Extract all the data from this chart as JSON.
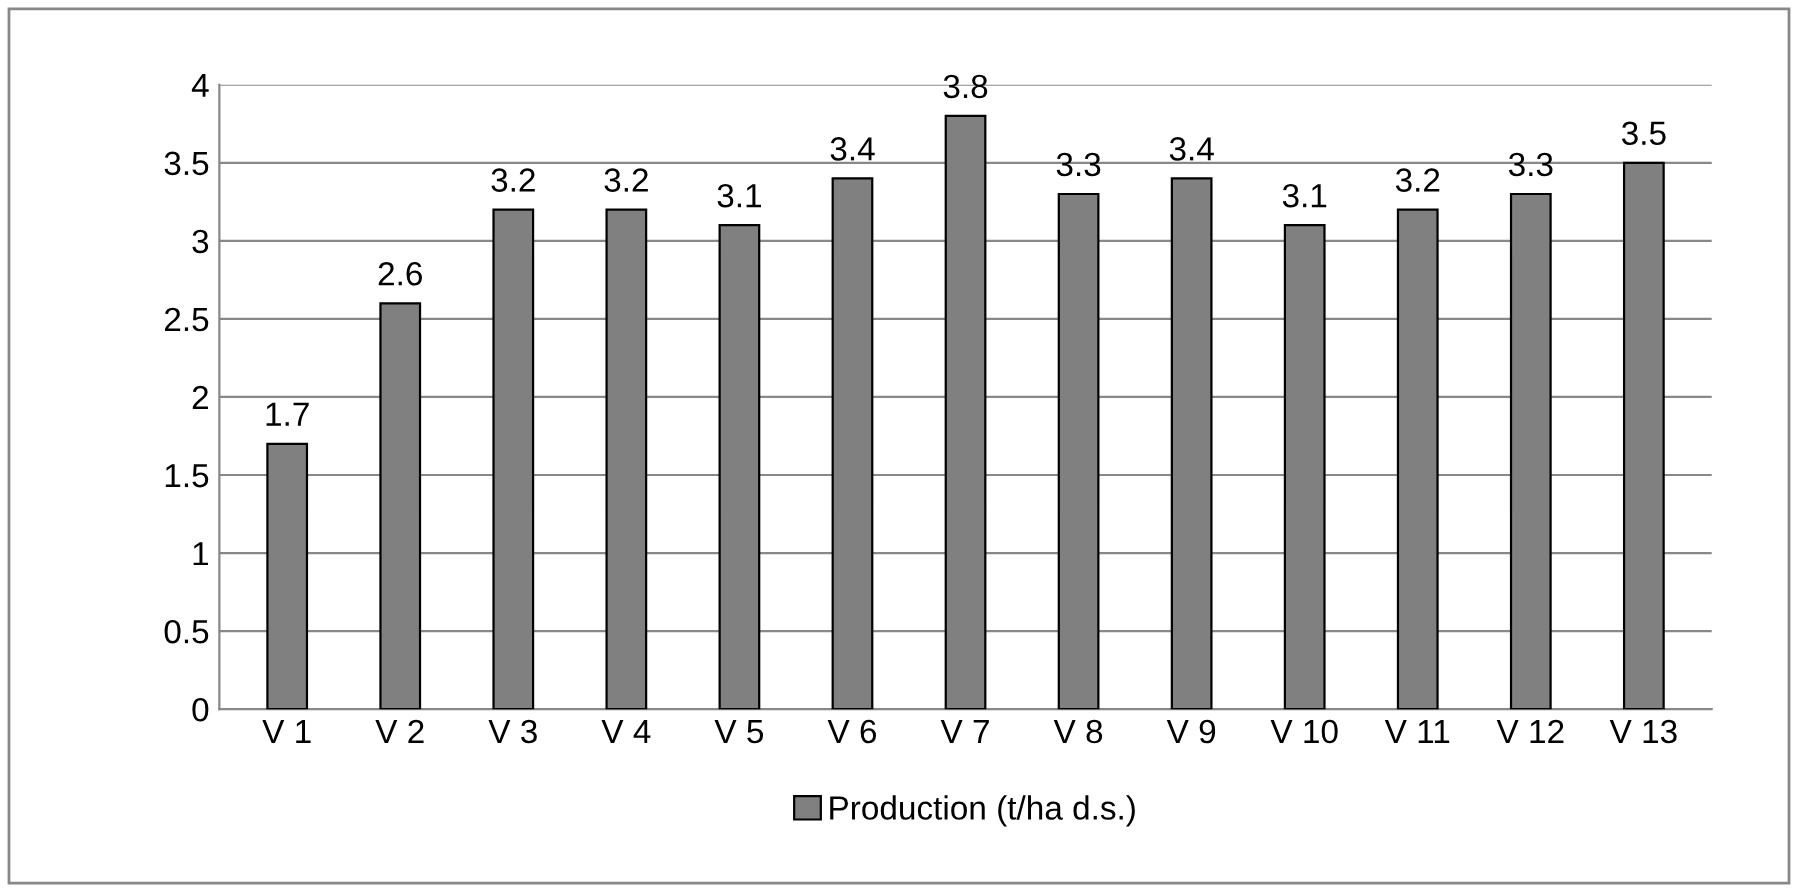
{
  "chart_data": {
    "type": "bar",
    "categories": [
      "V 1",
      "V 2",
      "V 3",
      "V 4",
      "V 5",
      "V 6",
      "V 7",
      "V 8",
      "V 9",
      "V 10",
      "V 11",
      "V 12",
      "V 13"
    ],
    "series": [
      {
        "name": "Production (t/ha d.s.)",
        "color": "#808080",
        "values": [
          1.7,
          2.6,
          3.2,
          3.2,
          3.1,
          3.4,
          3.8,
          3.3,
          3.4,
          3.1,
          3.2,
          3.3,
          3.5
        ]
      }
    ],
    "ylim": [
      0,
      4
    ],
    "yticks": [
      0,
      0.5,
      1,
      1.5,
      2,
      2.5,
      3,
      3.5,
      4
    ],
    "grid": "y",
    "legend": "bottom",
    "data_labels": true
  }
}
